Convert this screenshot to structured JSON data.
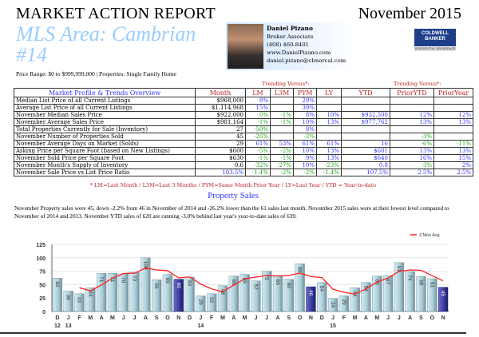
{
  "header": {
    "title": "MARKET ACTION REPORT",
    "date": "November 2015",
    "area": "MLS Area: Cambrian #14",
    "range": "Price Range: $0 to $999,999,000 | Properties: Single Family Home"
  },
  "agent": {
    "name": "Daniel Pizano",
    "role": "Broker Associate",
    "phone": "(408) 460-8401",
    "web": "www.DanielPizano.com",
    "email": "daniel.pizano@cbnorcal.com"
  },
  "logo": {
    "line1": "COLDWELL",
    "line2": "BANKER",
    "line3": "RESIDENTIAL BROKERAGE"
  },
  "table": {
    "trending1": "Trending Versus*:",
    "trending2": "Trending Versus*:",
    "headers": [
      "Market Profile & Trends Overview",
      "Month",
      "LM",
      "L3M",
      "PYM",
      "LY",
      "YTD",
      "PriorYTD",
      "PriorYear"
    ],
    "rows": [
      [
        "Median List Price of all Current Listings",
        "$968,000",
        "8%",
        "",
        "29%",
        "",
        "",
        "",
        ""
      ],
      [
        "Average List Price of all Current Listings",
        "$1,114,968",
        "15%",
        "",
        "39%",
        "",
        "",
        "",
        ""
      ],
      [
        "November Median Sales Price",
        "$922,000",
        "0%",
        "-1%",
        "8%",
        "10%",
        "$932,500",
        "12%",
        "12%"
      ],
      [
        "November Average Sales Price",
        "$981,164",
        "-1%",
        "-1%",
        "10%",
        "13%",
        "$977,762",
        "13%",
        "13%"
      ],
      [
        "Total Properties Currently for Sale (Inventory)",
        "27",
        "-50%",
        "",
        "8%",
        "",
        "",
        "",
        ""
      ],
      [
        "November Number of Properties Sold",
        "45",
        "-26%",
        "",
        "-2%",
        "",
        "",
        "-3%",
        ""
      ],
      [
        "November Average Days on Market (Solds)",
        "29",
        "61%",
        "53%",
        "61%",
        "61%",
        "16",
        "-6%",
        "-11%"
      ],
      [
        "Asking Price per Square Foot (based on New Listings)",
        "$600",
        "-5%",
        "-2%",
        "10%",
        "13%",
        "$601",
        "13%",
        "13%"
      ],
      [
        "November Sold Price per Square Foot",
        "$630",
        "-1%",
        "-1%",
        "9%",
        "13%",
        "$640",
        "16%",
        "15%"
      ],
      [
        "November Month's Supply of Inventory",
        "0.6",
        "-32%",
        "-27%",
        "10%",
        "-23%",
        "0.8",
        "-3%",
        "2%"
      ],
      [
        "November Sale Price vs List Price Ratio",
        "103.5%",
        "-1.4%",
        "-2%",
        "-2%",
        "-1.4%",
        "107.5%",
        "2.5%",
        "2.5%"
      ]
    ],
    "footnote": "* LM=Last Month / L3M=Last 3 Months / PYM=Same Month Prior Year / LY=Last Year / YTD = Year-to-date"
  },
  "section": {
    "title": "Property Sales",
    "text": "November Property sales were 45, down -2.2% from 46 in November of 2014 and -26.2% lower than the  61 sales last month.  November 2015 sales were at their lowest level compared to November of 2014 and 2013.  November YTD sales of 620 are running -3.0% behind last year's year-to-date sales of 639."
  },
  "colors": {
    "positive": "#3333ff",
    "negative": "#22aa22",
    "bar": "#a9cdd8",
    "highlight_bar": "#2a2a9a",
    "avg_line": "#ff2020"
  },
  "chart_data": {
    "type": "bar",
    "legend": "3 Mos Avg",
    "legend_position": "top-right",
    "ylim": [
      0,
      125
    ],
    "yticks": [
      0,
      25,
      50,
      75,
      100,
      125
    ],
    "grid": true,
    "categories": [
      "D",
      "J",
      "F",
      "M",
      "A",
      "M",
      "J",
      "J",
      "A",
      "S",
      "O",
      "N",
      "D",
      "J",
      "F",
      "M",
      "A",
      "M",
      "J",
      "J",
      "A",
      "S",
      "O",
      "N",
      "D",
      "J",
      "F",
      "M",
      "A",
      "M",
      "J",
      "J",
      "A",
      "S",
      "O",
      "N"
    ],
    "year_labels": {
      "0": "12",
      "1": "13",
      "13": "14",
      "25": "15"
    },
    "values": [
      62,
      38,
      33,
      44,
      71,
      71,
      70,
      73,
      100,
      59,
      69,
      60,
      64,
      29,
      33,
      48,
      66,
      69,
      57,
      75,
      66,
      60,
      89,
      46,
      54,
      24,
      29,
      44,
      54,
      66,
      67,
      91,
      74,
      65,
      61,
      45
    ],
    "highlighted": [
      11,
      23,
      35
    ]
  }
}
